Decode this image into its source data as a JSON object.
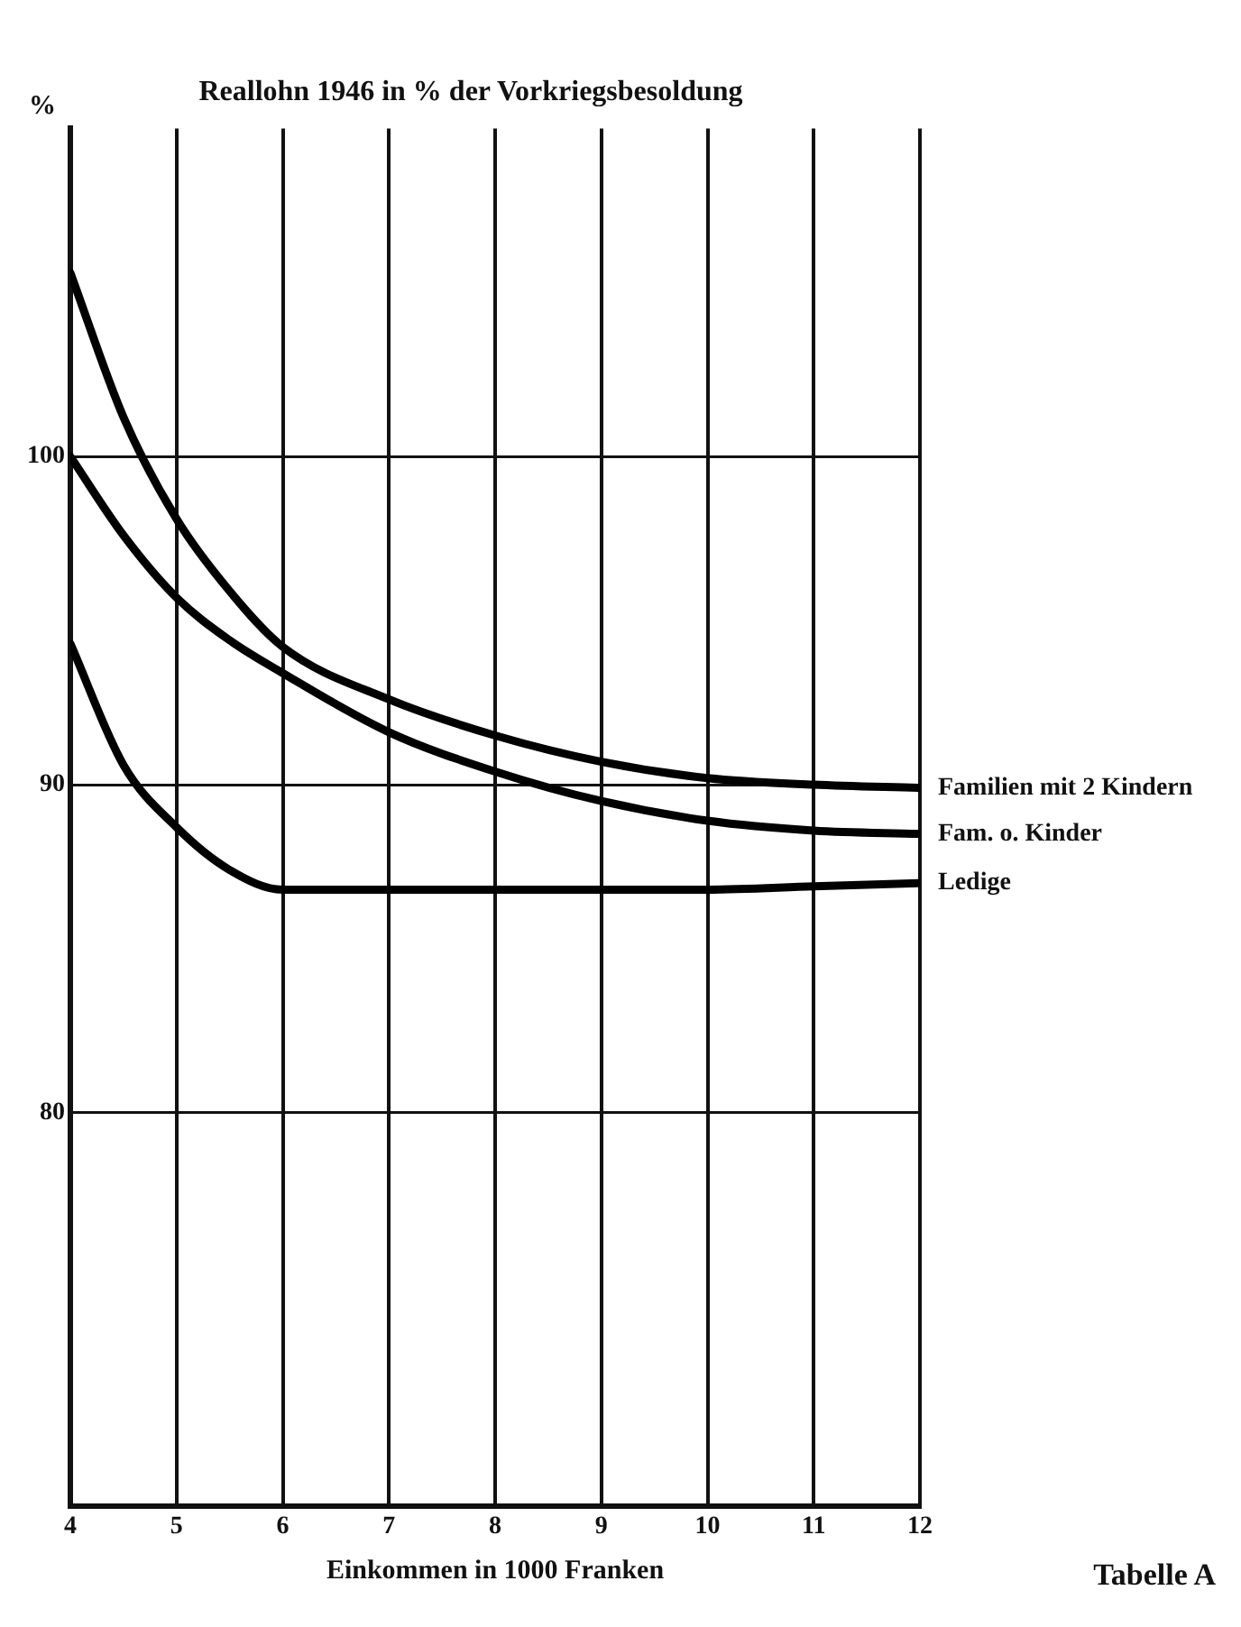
{
  "chart_data": {
    "type": "line",
    "title": "Reallohn 1946 in % der Vorkriegsbesoldung",
    "xlabel": "Einkommen in 1000 Franken",
    "ylabel": "%",
    "x": [
      4,
      4.5,
      5,
      5.5,
      6,
      7,
      8,
      9,
      10,
      11,
      12
    ],
    "series": [
      {
        "name": "Familien mit 2 Kindern",
        "color": "#000000",
        "values": [
          105.6,
          101.2,
          98.1,
          95.9,
          94.2,
          92.6,
          91.5,
          90.7,
          90.2,
          90.0,
          89.9
        ]
      },
      {
        "name": "Fam. o. Kinder",
        "color": "#000000",
        "values": [
          100.0,
          97.6,
          95.7,
          94.4,
          93.4,
          91.6,
          90.4,
          89.5,
          88.9,
          88.6,
          88.5
        ]
      },
      {
        "name": "Ledige",
        "color": "#000000",
        "values": [
          94.3,
          90.6,
          88.7,
          87.4,
          86.8,
          86.8,
          86.8,
          86.8,
          86.8,
          86.9,
          87.0
        ]
      }
    ],
    "xlim": [
      4,
      12
    ],
    "xticks": [
      4,
      5,
      6,
      7,
      8,
      9,
      10,
      11,
      12
    ],
    "ylim": [
      68,
      110
    ],
    "yticks": [
      80,
      90,
      100
    ],
    "grid": true,
    "legend": false,
    "marker": "none",
    "line_style": "solid",
    "annotations": [
      "Tabelle A"
    ]
  }
}
